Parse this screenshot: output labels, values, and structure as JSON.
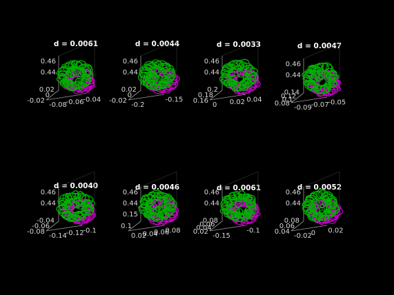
{
  "figure": {
    "background": "#000000",
    "text_color": "#ffffff"
  },
  "chart_data": [
    {
      "type": "scatter3d",
      "title": "d = 0.0061",
      "ticks": {
        "z": [
          "0.46",
          "0.44"
        ],
        "left": [
          "0.02",
          "0",
          "-0.02"
        ],
        "right": [
          "-0.04",
          "-0.06",
          "-0.08"
        ]
      },
      "series": [
        {
          "color": "#00b000"
        },
        {
          "color": "#c000c0"
        }
      ]
    },
    {
      "type": "scatter3d",
      "title": "d = 0.0044",
      "ticks": {
        "z": [
          "0.46",
          "0.44"
        ],
        "left": [
          "0.02",
          "0",
          "-0.02"
        ],
        "right": [
          "-0.15",
          "-0.2"
        ]
      },
      "series": [
        {
          "color": "#00b000"
        },
        {
          "color": "#c000c0"
        }
      ]
    },
    {
      "type": "scatter3d",
      "title": "d = 0.0033",
      "ticks": {
        "z": [
          "0.46",
          "0.44"
        ],
        "left": [
          "0.2",
          "0.18",
          "0.16"
        ],
        "right": [
          "0.04",
          "0.02",
          "0"
        ]
      },
      "series": [
        {
          "color": "#00b000"
        },
        {
          "color": "#c000c0"
        }
      ]
    },
    {
      "type": "scatter3d",
      "title": "d = 0.0047",
      "ticks": {
        "z": [
          "0.46",
          "0.44"
        ],
        "left": [
          "0.14",
          "0.12",
          "0.1",
          "0.08"
        ],
        "right": [
          "-0.05",
          "-0.07",
          "-0.09"
        ]
      },
      "series": [
        {
          "color": "#00b000"
        },
        {
          "color": "#c000c0"
        }
      ]
    },
    {
      "type": "scatter3d",
      "title": "d = 0.0040",
      "ticks": {
        "z": [
          "0.46",
          "0.44"
        ],
        "left": [
          "-0.04",
          "-0.06",
          "-0.08"
        ],
        "right": [
          "-0.1",
          "-0.12",
          "-0.14"
        ]
      },
      "series": [
        {
          "color": "#00b000"
        },
        {
          "color": "#c000c0"
        }
      ]
    },
    {
      "type": "scatter3d",
      "title": "d = 0.0046",
      "ticks": {
        "z": [
          "0.46",
          "0.44",
          "0.15"
        ],
        "left": [
          "0.1"
        ],
        "right": [
          "0.08",
          "0.06",
          "0.04",
          "0.02"
        ]
      },
      "series": [
        {
          "color": "#00b000"
        },
        {
          "color": "#c000c0"
        }
      ]
    },
    {
      "type": "scatter3d",
      "title": "d = 0.0061",
      "ticks": {
        "z": [
          "0.46",
          "0.44"
        ],
        "left": [
          "0.08",
          "0.06",
          "0.04",
          "0.02"
        ],
        "right": [
          "-0.1",
          "-0.15"
        ]
      },
      "series": [
        {
          "color": "#00b000"
        },
        {
          "color": "#c000c0"
        }
      ]
    },
    {
      "type": "scatter3d",
      "title": "d = 0.0052",
      "ticks": {
        "z": [
          "0.46",
          "0.44"
        ],
        "left": [
          "0.08",
          "0.06",
          "0.04"
        ],
        "right": [
          "0.02",
          "0",
          "-0.02"
        ]
      },
      "series": [
        {
          "color": "#00b000"
        },
        {
          "color": "#c000c0"
        }
      ]
    }
  ]
}
